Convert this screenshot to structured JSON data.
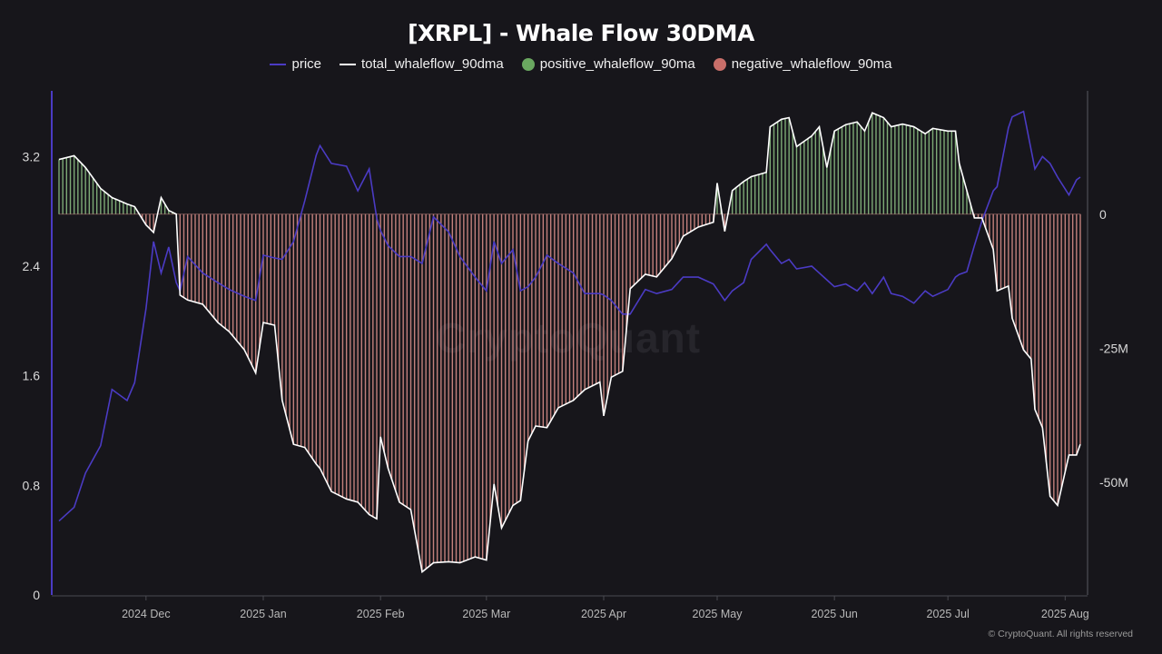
{
  "chart_data": {
    "type": "line+bar",
    "title": "[XRPL] - Whale Flow 30DMA",
    "legend_placement": "top-center",
    "legend": [
      {
        "name": "price",
        "color": "#4b3bc4",
        "marker": "line"
      },
      {
        "name": "total_whaleflow_90dma",
        "color": "#ffffff",
        "marker": "line"
      },
      {
        "name": "positive_whaleflow_90ma",
        "color": "#6aa860",
        "marker": "dot"
      },
      {
        "name": "negative_whaleflow_90ma",
        "color": "#c96f6a",
        "marker": "dot"
      }
    ],
    "x_ticks": [
      "2024 Dec",
      "2025 Jan",
      "2025 Feb",
      "2025 Mar",
      "2025 Apr",
      "2025 May",
      "2025 Jun",
      "2025 Jul",
      "2025 Aug"
    ],
    "x_tick_dates": [
      "2024-12-01",
      "2025-01-01",
      "2025-02-01",
      "2025-03-01",
      "2025-04-01",
      "2025-05-01",
      "2025-06-01",
      "2025-07-01",
      "2025-08-01"
    ],
    "xlim": [
      "2024-11-08",
      "2025-08-05"
    ],
    "y_left": {
      "ticks": [
        "0",
        "0.8",
        "1.6",
        "2.4",
        "3.2"
      ],
      "tick_values": [
        0,
        0.8,
        1.6,
        2.4,
        3.2
      ],
      "range": [
        0,
        3.68
      ]
    },
    "y_right": {
      "ticks": [
        "0",
        "-25M",
        "-50M"
      ],
      "tick_values": [
        0,
        -25,
        -50
      ],
      "unit": "M",
      "range": [
        -71,
        23
      ]
    },
    "grid": false,
    "x": [
      "2024-11-08",
      "2024-11-12",
      "2024-11-15",
      "2024-11-19",
      "2024-11-22",
      "2024-11-26",
      "2024-11-28",
      "2024-12-01",
      "2024-12-03",
      "2024-12-05",
      "2024-12-07",
      "2024-12-09",
      "2024-12-10",
      "2024-12-12",
      "2024-12-16",
      "2024-12-20",
      "2024-12-23",
      "2024-12-27",
      "2024-12-30",
      "2025-01-01",
      "2025-01-04",
      "2025-01-06",
      "2025-01-09",
      "2025-01-12",
      "2025-01-15",
      "2025-01-16",
      "2025-01-19",
      "2025-01-23",
      "2025-01-26",
      "2025-01-29",
      "2025-01-31",
      "2025-02-01",
      "2025-02-03",
      "2025-02-06",
      "2025-02-09",
      "2025-02-12",
      "2025-02-15",
      "2025-02-19",
      "2025-02-22",
      "2025-02-26",
      "2025-03-01",
      "2025-03-03",
      "2025-03-05",
      "2025-03-08",
      "2025-03-10",
      "2025-03-12",
      "2025-03-14",
      "2025-03-17",
      "2025-03-20",
      "2025-03-24",
      "2025-03-27",
      "2025-03-31",
      "2025-04-01",
      "2025-04-03",
      "2025-04-06",
      "2025-04-08",
      "2025-04-12",
      "2025-04-15",
      "2025-04-19",
      "2025-04-22",
      "2025-04-26",
      "2025-04-30",
      "2025-05-01",
      "2025-05-03",
      "2025-05-05",
      "2025-05-08",
      "2025-05-10",
      "2025-05-14",
      "2025-05-15",
      "2025-05-18",
      "2025-05-20",
      "2025-05-22",
      "2025-05-26",
      "2025-05-28",
      "2025-05-30",
      "2025-06-01",
      "2025-06-04",
      "2025-06-07",
      "2025-06-09",
      "2025-06-11",
      "2025-06-14",
      "2025-06-16",
      "2025-06-19",
      "2025-06-22",
      "2025-06-25",
      "2025-06-27",
      "2025-07-01",
      "2025-07-03",
      "2025-07-04",
      "2025-07-06",
      "2025-07-08",
      "2025-07-10",
      "2025-07-13",
      "2025-07-14",
      "2025-07-17",
      "2025-07-18",
      "2025-07-21",
      "2025-07-23",
      "2025-07-24",
      "2025-07-26",
      "2025-07-28",
      "2025-07-30",
      "2025-08-02",
      "2025-08-04",
      "2025-08-05"
    ],
    "series": [
      {
        "name": "price",
        "axis": "left",
        "values": [
          0.54,
          0.64,
          0.89,
          1.09,
          1.5,
          1.42,
          1.55,
          2.09,
          2.58,
          2.35,
          2.54,
          2.28,
          2.22,
          2.47,
          2.35,
          2.28,
          2.23,
          2.18,
          2.15,
          2.48,
          2.46,
          2.45,
          2.58,
          2.88,
          3.21,
          3.28,
          3.15,
          3.13,
          2.95,
          3.11,
          2.75,
          2.66,
          2.55,
          2.47,
          2.47,
          2.42,
          2.76,
          2.65,
          2.47,
          2.32,
          2.22,
          2.58,
          2.42,
          2.52,
          2.22,
          2.25,
          2.32,
          2.48,
          2.42,
          2.35,
          2.2,
          2.2,
          2.19,
          2.15,
          2.05,
          2.05,
          2.23,
          2.2,
          2.23,
          2.32,
          2.32,
          2.27,
          2.23,
          2.15,
          2.22,
          2.28,
          2.45,
          2.56,
          2.52,
          2.42,
          2.45,
          2.38,
          2.4,
          2.35,
          2.3,
          2.25,
          2.27,
          2.22,
          2.28,
          2.2,
          2.32,
          2.2,
          2.18,
          2.13,
          2.22,
          2.18,
          2.23,
          2.32,
          2.34,
          2.36,
          2.55,
          2.73,
          2.95,
          2.98,
          3.41,
          3.49,
          3.53,
          3.25,
          3.11,
          3.2,
          3.15,
          3.05,
          2.92,
          3.03,
          3.05
        ]
      },
      {
        "name": "total_whaleflow_90dma",
        "axis": "right",
        "unit": "M",
        "values": [
          10.2,
          10.9,
          8.7,
          4.8,
          3.1,
          1.9,
          1.4,
          -2.0,
          -3.4,
          3.1,
          0.7,
          0.0,
          -15.1,
          -16.0,
          -16.8,
          -20.2,
          -21.9,
          -25.3,
          -29.6,
          -20.2,
          -20.7,
          -34.7,
          -42.9,
          -43.5,
          -46.6,
          -47.4,
          -51.7,
          -53.1,
          -53.7,
          -56.0,
          -56.8,
          -41.5,
          -47.4,
          -53.7,
          -55.1,
          -66.7,
          -65.0,
          -64.8,
          -65.0,
          -63.9,
          -64.5,
          -50.3,
          -58.5,
          -54.3,
          -53.4,
          -42.3,
          -39.5,
          -39.8,
          -36.1,
          -34.7,
          -32.7,
          -31.3,
          -37.6,
          -30.4,
          -29.3,
          -13.9,
          -11.2,
          -11.7,
          -8.3,
          -4.1,
          -2.4,
          -1.5,
          5.8,
          -3.2,
          4.4,
          6.1,
          7.0,
          7.8,
          16.3,
          17.7,
          18.0,
          12.6,
          14.6,
          16.3,
          8.7,
          15.5,
          16.7,
          17.2,
          15.5,
          18.9,
          18.0,
          16.3,
          16.8,
          16.3,
          15.0,
          16.0,
          15.5,
          15.5,
          9.5,
          4.4,
          -0.7,
          -0.7,
          -6.6,
          -14.3,
          -13.4,
          -19.4,
          -25.3,
          -27.0,
          -36.4,
          -39.8,
          -52.6,
          -54.3,
          -44.9,
          -44.9,
          -42.9
        ]
      }
    ]
  },
  "watermark": "CryptoQuant",
  "credit": "© CryptoQuant. All rights reserved",
  "colors": {
    "background": "#17161b",
    "price": "#4b3bc4",
    "total": "#ffffff",
    "positive": "#6aa860",
    "negative": "#c96f6a"
  }
}
